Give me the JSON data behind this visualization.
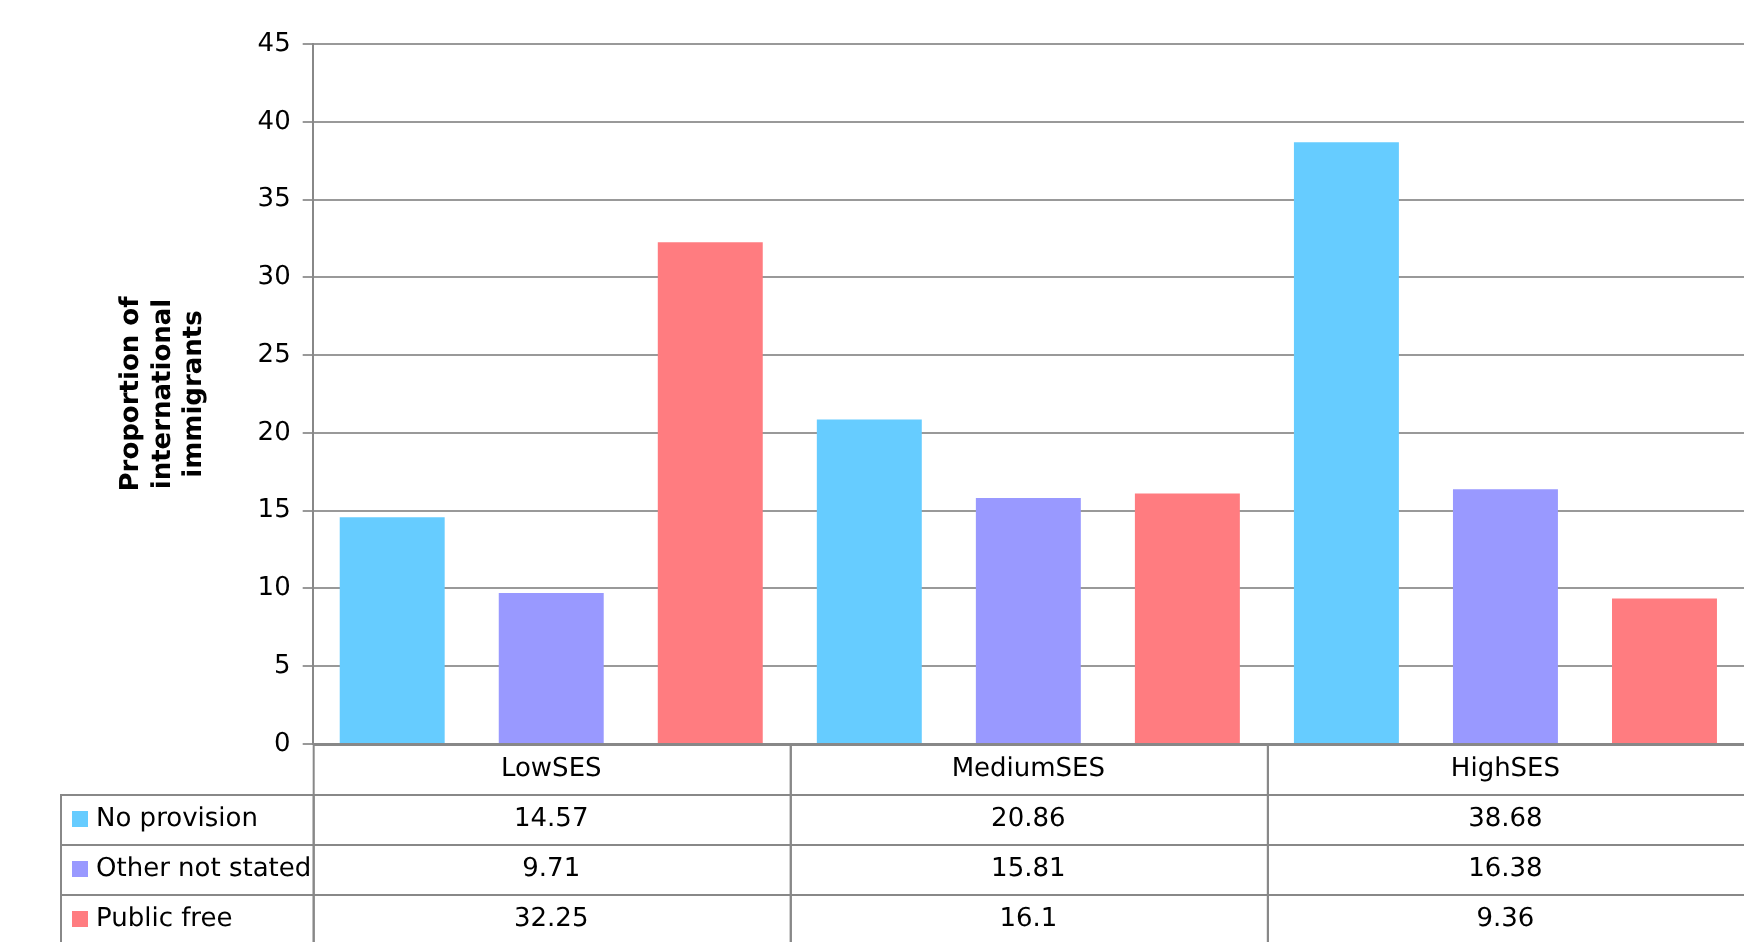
{
  "chart_data": {
    "type": "bar",
    "ylabel": "Proportion of international immigrants",
    "categories": [
      "LowSES",
      "MediumSES",
      "HighSES"
    ],
    "series": [
      {
        "name": "No provision",
        "color": "#66ccff",
        "values": [
          14.57,
          20.86,
          38.68
        ]
      },
      {
        "name": "Other not stated",
        "color": "#9999ff",
        "values": [
          9.71,
          15.81,
          16.38
        ]
      },
      {
        "name": "Public free",
        "color": "#ff7c80",
        "values": [
          32.25,
          16.1,
          9.36
        ]
      }
    ],
    "ylim": [
      0,
      45
    ],
    "yticks": [
      0,
      5,
      10,
      15,
      20,
      25,
      30,
      35,
      40,
      45
    ],
    "grid": "y",
    "legend": "bottom",
    "data_labels": true
  }
}
